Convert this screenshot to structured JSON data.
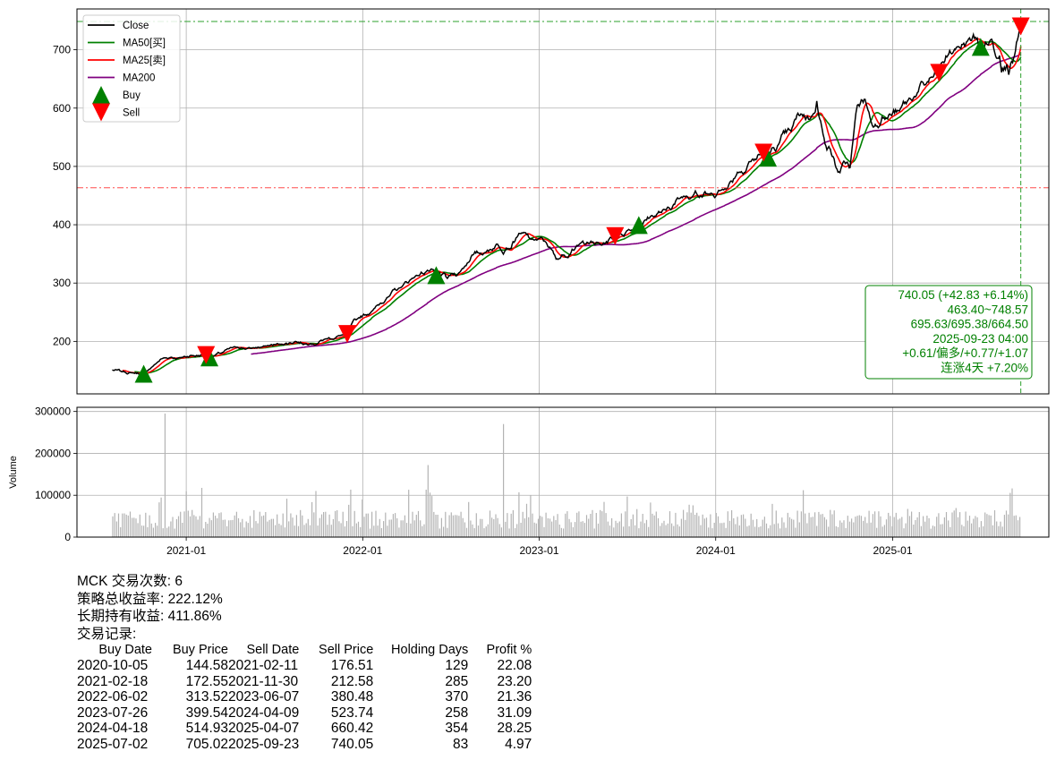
{
  "chart_data": [
    {
      "type": "line",
      "panel": "price",
      "x_ticks": [
        "2021-01",
        "2022-01",
        "2023-01",
        "2024-01",
        "2025-01"
      ],
      "y_ticks": [
        "200",
        "300",
        "400",
        "500",
        "600",
        "700"
      ],
      "ylim": [
        110,
        770
      ],
      "grid": true,
      "legend_position": "top-left",
      "legend": [
        {
          "label": "Close",
          "color": "#000000",
          "kind": "line"
        },
        {
          "label": "MA50[买]",
          "color": "#008000",
          "kind": "line"
        },
        {
          "label": "MA25[卖]",
          "color": "#ff0000",
          "kind": "line"
        },
        {
          "label": "MA200",
          "color": "#800080",
          "kind": "line"
        },
        {
          "label": "Buy",
          "color": "#008000",
          "kind": "triangle-up"
        },
        {
          "label": "Sell",
          "color": "#ff0000",
          "kind": "triangle-down"
        }
      ],
      "close_anchors": [
        [
          "2020-08-01",
          151
        ],
        [
          "2020-08-20",
          148
        ],
        [
          "2020-09-10",
          146
        ],
        [
          "2020-10-05",
          145
        ],
        [
          "2020-10-25",
          158
        ],
        [
          "2020-11-10",
          170
        ],
        [
          "2020-12-01",
          173
        ],
        [
          "2020-12-20",
          172
        ],
        [
          "2021-01-10",
          176
        ],
        [
          "2021-02-11",
          177
        ],
        [
          "2021-02-18",
          174
        ],
        [
          "2021-03-15",
          180
        ],
        [
          "2021-04-15",
          190
        ],
        [
          "2021-05-15",
          188
        ],
        [
          "2021-06-15",
          192
        ],
        [
          "2021-07-15",
          195
        ],
        [
          "2021-08-15",
          200
        ],
        [
          "2021-09-15",
          196
        ],
        [
          "2021-10-15",
          204
        ],
        [
          "2021-11-15",
          210
        ],
        [
          "2021-11-30",
          213
        ],
        [
          "2021-12-20",
          238
        ],
        [
          "2022-01-20",
          252
        ],
        [
          "2022-02-20",
          275
        ],
        [
          "2022-03-20",
          292
        ],
        [
          "2022-04-20",
          312
        ],
        [
          "2022-05-15",
          322
        ],
        [
          "2022-06-02",
          314
        ],
        [
          "2022-06-25",
          308
        ],
        [
          "2022-07-20",
          318
        ],
        [
          "2022-08-15",
          348
        ],
        [
          "2022-09-10",
          352
        ],
        [
          "2022-10-05",
          367
        ],
        [
          "2022-10-25",
          360
        ],
        [
          "2022-11-20",
          385
        ],
        [
          "2022-12-15",
          375
        ],
        [
          "2023-01-15",
          370
        ],
        [
          "2023-02-05",
          341
        ],
        [
          "2023-02-20",
          348
        ],
        [
          "2023-03-10",
          358
        ],
        [
          "2023-04-10",
          370
        ],
        [
          "2023-05-10",
          365
        ],
        [
          "2023-06-07",
          380
        ],
        [
          "2023-07-05",
          392
        ],
        [
          "2023-07-26",
          400
        ],
        [
          "2023-08-20",
          415
        ],
        [
          "2023-09-20",
          425
        ],
        [
          "2023-10-20",
          446
        ],
        [
          "2023-11-20",
          458
        ],
        [
          "2023-12-20",
          452
        ],
        [
          "2024-01-20",
          462
        ],
        [
          "2024-02-15",
          490
        ],
        [
          "2024-03-10",
          508
        ],
        [
          "2024-04-09",
          524
        ],
        [
          "2024-04-18",
          515
        ],
        [
          "2024-05-10",
          538
        ],
        [
          "2024-06-05",
          560
        ],
        [
          "2024-06-25",
          590
        ],
        [
          "2024-07-15",
          582
        ],
        [
          "2024-07-28",
          612
        ],
        [
          "2024-08-10",
          555
        ],
        [
          "2024-08-25",
          530
        ],
        [
          "2024-09-10",
          490
        ],
        [
          "2024-09-25",
          505
        ],
        [
          "2024-10-05",
          498
        ],
        [
          "2024-10-20",
          605
        ],
        [
          "2024-11-05",
          615
        ],
        [
          "2024-11-20",
          570
        ],
        [
          "2024-12-10",
          585
        ],
        [
          "2025-01-15",
          595
        ],
        [
          "2025-02-15",
          620
        ],
        [
          "2025-03-10",
          640
        ],
        [
          "2025-04-07",
          660
        ],
        [
          "2025-04-25",
          690
        ],
        [
          "2025-05-10",
          700
        ],
        [
          "2025-06-05",
          715
        ],
        [
          "2025-06-25",
          720
        ],
        [
          "2025-07-02",
          705
        ],
        [
          "2025-07-25",
          718
        ],
        [
          "2025-08-10",
          690
        ],
        [
          "2025-08-25",
          675
        ],
        [
          "2025-09-10",
          690
        ],
        [
          "2025-09-23",
          740
        ]
      ],
      "ma200_start": "2021-05-15",
      "buy_signals": [
        {
          "date": "2020-10-05",
          "price": 144.58
        },
        {
          "date": "2021-02-18",
          "price": 172.55
        },
        {
          "date": "2022-06-02",
          "price": 313.52
        },
        {
          "date": "2023-07-26",
          "price": 399.54
        },
        {
          "date": "2024-04-18",
          "price": 514.93
        },
        {
          "date": "2025-07-02",
          "price": 705.02
        }
      ],
      "sell_signals": [
        {
          "date": "2021-02-11",
          "price": 176.51
        },
        {
          "date": "2021-11-30",
          "price": 212.58
        },
        {
          "date": "2023-06-07",
          "price": 380.48
        },
        {
          "date": "2024-04-09",
          "price": 523.74
        },
        {
          "date": "2025-04-07",
          "price": 660.42
        },
        {
          "date": "2025-09-23",
          "price": 740.05
        }
      ],
      "hlines": [
        {
          "value": 748.57,
          "color": "#2ca02c"
        },
        {
          "value": 463.4,
          "color": "#ff4d4d"
        }
      ],
      "vline": {
        "date": "2025-09-23",
        "color": "#2ca02c"
      },
      "info_box": [
        "740.05 (+42.83 +6.14%)",
        "463.40~748.57",
        "695.63/695.38/664.50",
        "2025-09-23 04:00",
        "+0.61/偏多/+0.77/+1.07",
        "连涨4天 +7.20%"
      ]
    },
    {
      "type": "bar",
      "panel": "volume",
      "ylabel": "Volume",
      "y_ticks": [
        "0",
        "100000",
        "200000",
        "300000"
      ],
      "ylim": [
        0,
        310000
      ],
      "grid": true,
      "x_ticks": [
        "2021-01",
        "2022-01",
        "2023-01",
        "2024-01",
        "2025-01"
      ],
      "bar_color": "#b3b3b3",
      "notable_spikes": [
        {
          "date": "2020-11-18",
          "value": 295000
        },
        {
          "date": "2022-10-18",
          "value": 270000
        },
        {
          "date": "2022-05-15",
          "value": 172000
        },
        {
          "date": "2021-09-25",
          "value": 110000
        }
      ]
    }
  ],
  "summary": {
    "line1": "MCK 交易次数: 6",
    "line2": "策略总收益率: 222.12%",
    "line3": "长期持有收益: 411.86%",
    "line4": "交易记录:",
    "table_headers": [
      "Buy Date",
      "Buy Price",
      "Sell Date",
      "Sell Price",
      "Holding Days",
      "Profit %"
    ],
    "trades": [
      {
        "buy_date": "2020-10-05",
        "buy_price": "144.58",
        "sell_date": "2021-02-11",
        "sell_price": "176.51",
        "days": "129",
        "profit": "22.08"
      },
      {
        "buy_date": "2021-02-18",
        "buy_price": "172.55",
        "sell_date": "2021-11-30",
        "sell_price": "212.58",
        "days": "285",
        "profit": "23.20"
      },
      {
        "buy_date": "2022-06-02",
        "buy_price": "313.52",
        "sell_date": "2023-06-07",
        "sell_price": "380.48",
        "days": "370",
        "profit": "21.36"
      },
      {
        "buy_date": "2023-07-26",
        "buy_price": "399.54",
        "sell_date": "2024-04-09",
        "sell_price": "523.74",
        "days": "258",
        "profit": "31.09"
      },
      {
        "buy_date": "2024-04-18",
        "buy_price": "514.93",
        "sell_date": "2025-04-07",
        "sell_price": "660.42",
        "days": "354",
        "profit": "28.25"
      },
      {
        "buy_date": "2025-07-02",
        "buy_price": "705.02",
        "sell_date": "2025-09-23",
        "sell_price": "740.05",
        "days": "83",
        "profit": "4.97"
      }
    ]
  }
}
